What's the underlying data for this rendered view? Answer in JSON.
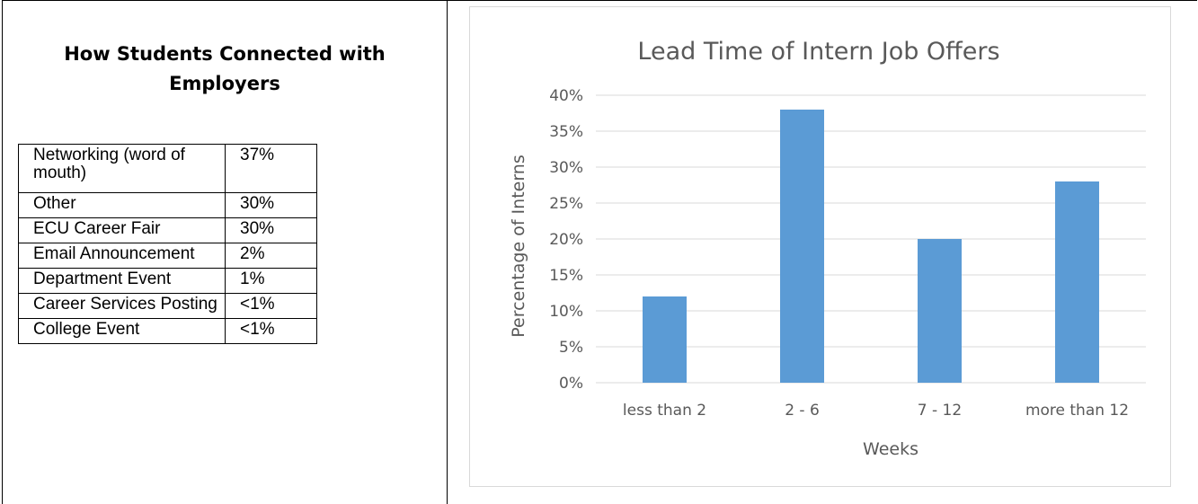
{
  "left_panel": {
    "title": "How Students Connected with Employers",
    "rows": [
      {
        "label": "Networking (word of mouth)",
        "value": "37%"
      },
      {
        "label": "Other",
        "value": "30%"
      },
      {
        "label": "ECU Career Fair",
        "value": "30%"
      },
      {
        "label": "Email Announcement",
        "value": "2%"
      },
      {
        "label": "Department Event",
        "value": "1%"
      },
      {
        "label": "Career Services Posting",
        "value": "<1%"
      },
      {
        "label": "College Event",
        "value": "<1%"
      }
    ]
  },
  "chart_data": {
    "type": "bar",
    "title": "Lead Time of Intern Job Offers",
    "xlabel": "Weeks",
    "ylabel": "Percentage of Interns",
    "categories": [
      "less than 2",
      "2 - 6",
      "7 - 12",
      "more than 12"
    ],
    "values": [
      12,
      38,
      20,
      28
    ],
    "ylim": [
      0,
      40
    ],
    "yticks": [
      "0%",
      "5%",
      "10%",
      "15%",
      "20%",
      "25%",
      "30%",
      "35%",
      "40%"
    ],
    "grid": true,
    "bar_color": "#5b9bd5",
    "grid_color": "#d9d9d9"
  }
}
